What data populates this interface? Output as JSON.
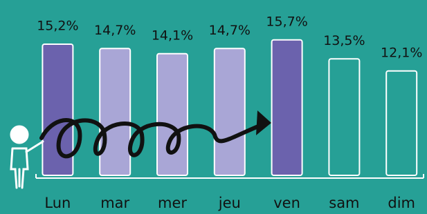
{
  "chart_data": {
    "type": "bar",
    "categories": [
      "Lun",
      "mar",
      "mer",
      "jeu",
      "ven",
      "sam",
      "dim"
    ],
    "values": [
      15.2,
      14.7,
      14.1,
      14.7,
      15.7,
      13.5,
      12.1
    ],
    "value_labels": [
      "15,2%",
      "14,7%",
      "14,1%",
      "14,7%",
      "15,7%",
      "13,5%",
      "12,1%"
    ],
    "colors": [
      "#6b62ad",
      "#a9a6d6",
      "#a9a6d6",
      "#a9a6d6",
      "#6b62ad",
      "#26a096",
      "#26a096"
    ]
  }
}
